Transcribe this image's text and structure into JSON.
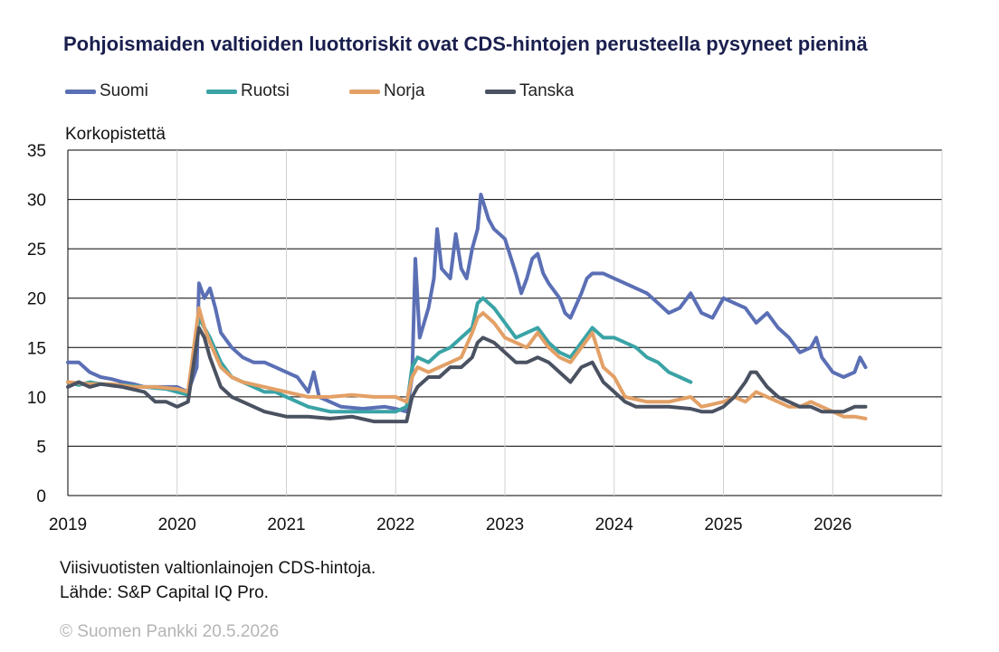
{
  "title": "Pohjoismaiden valtioiden luottoriskit ovat CDS-hintojen perusteella pysyneet pieninä",
  "unit_label": "Korkopistettä",
  "notes": [
    "Viisivuotisten valtionlainojen CDS-hintoja.",
    "Lähde: S&P Capital IQ Pro."
  ],
  "copyright": "© Suomen Pankki 20.5.2026",
  "legend": [
    {
      "name": "Suomi",
      "color": "#5b6fb5"
    },
    {
      "name": "Ruotsi",
      "color": "#3aa3a6"
    },
    {
      "name": "Norja",
      "color": "#e3a066"
    },
    {
      "name": "Tanska",
      "color": "#4a5262"
    }
  ],
  "chart_data": {
    "type": "line",
    "ylabel": "Korkopistettä",
    "xlim": [
      2019,
      2027
    ],
    "ylim": [
      0,
      35
    ],
    "x_ticks": [
      2019,
      2020,
      2021,
      2022,
      2023,
      2024,
      2025,
      2026
    ],
    "y_ticks": [
      0,
      5,
      10,
      15,
      20,
      25,
      30,
      35
    ],
    "grid": "vertical and horizontal",
    "legend_position": "top",
    "series": [
      {
        "name": "Suomi",
        "color": "#5b6fb5",
        "points": [
          [
            2019.0,
            13.5
          ],
          [
            2019.1,
            13.5
          ],
          [
            2019.2,
            12.5
          ],
          [
            2019.3,
            12.0
          ],
          [
            2019.4,
            11.8
          ],
          [
            2019.5,
            11.5
          ],
          [
            2019.6,
            11.3
          ],
          [
            2019.7,
            11.0
          ],
          [
            2019.8,
            11.0
          ],
          [
            2019.9,
            11.0
          ],
          [
            2020.0,
            11.0
          ],
          [
            2020.1,
            10.5
          ],
          [
            2020.18,
            13.0
          ],
          [
            2020.2,
            21.5
          ],
          [
            2020.25,
            20.0
          ],
          [
            2020.3,
            21.0
          ],
          [
            2020.35,
            19.0
          ],
          [
            2020.4,
            16.5
          ],
          [
            2020.5,
            15.0
          ],
          [
            2020.6,
            14.0
          ],
          [
            2020.7,
            13.5
          ],
          [
            2020.8,
            13.5
          ],
          [
            2020.9,
            13.0
          ],
          [
            2021.0,
            12.5
          ],
          [
            2021.1,
            12.0
          ],
          [
            2021.2,
            10.5
          ],
          [
            2021.25,
            12.5
          ],
          [
            2021.3,
            10.0
          ],
          [
            2021.5,
            9.0
          ],
          [
            2021.7,
            8.8
          ],
          [
            2021.9,
            9.0
          ],
          [
            2022.0,
            8.8
          ],
          [
            2022.1,
            8.5
          ],
          [
            2022.15,
            12.0
          ],
          [
            2022.18,
            24.0
          ],
          [
            2022.22,
            16.0
          ],
          [
            2022.3,
            19.0
          ],
          [
            2022.35,
            22.0
          ],
          [
            2022.38,
            27.0
          ],
          [
            2022.42,
            23.0
          ],
          [
            2022.5,
            22.0
          ],
          [
            2022.55,
            26.5
          ],
          [
            2022.6,
            23.0
          ],
          [
            2022.65,
            22.0
          ],
          [
            2022.7,
            25.0
          ],
          [
            2022.75,
            27.0
          ],
          [
            2022.78,
            30.5
          ],
          [
            2022.85,
            28.0
          ],
          [
            2022.9,
            27.0
          ],
          [
            2023.0,
            26.0
          ],
          [
            2023.1,
            22.5
          ],
          [
            2023.15,
            20.5
          ],
          [
            2023.2,
            22.0
          ],
          [
            2023.25,
            24.0
          ],
          [
            2023.3,
            24.5
          ],
          [
            2023.35,
            22.5
          ],
          [
            2023.4,
            21.5
          ],
          [
            2023.5,
            20.0
          ],
          [
            2023.55,
            18.5
          ],
          [
            2023.6,
            18.0
          ],
          [
            2023.7,
            20.5
          ],
          [
            2023.75,
            22.0
          ],
          [
            2023.8,
            22.5
          ],
          [
            2023.9,
            22.5
          ],
          [
            2024.0,
            22.0
          ],
          [
            2024.1,
            21.5
          ],
          [
            2024.2,
            21.0
          ],
          [
            2024.3,
            20.5
          ],
          [
            2024.4,
            19.5
          ],
          [
            2024.5,
            18.5
          ],
          [
            2024.6,
            19.0
          ],
          [
            2024.7,
            20.5
          ],
          [
            2024.8,
            18.5
          ],
          [
            2024.9,
            18.0
          ],
          [
            2025.0,
            20.0
          ],
          [
            2025.1,
            19.5
          ],
          [
            2025.2,
            19.0
          ],
          [
            2025.3,
            17.5
          ],
          [
            2025.4,
            18.5
          ],
          [
            2025.5,
            17.0
          ],
          [
            2025.6,
            16.0
          ],
          [
            2025.7,
            14.5
          ],
          [
            2025.8,
            15.0
          ],
          [
            2025.85,
            16.0
          ],
          [
            2025.9,
            14.0
          ],
          [
            2026.0,
            12.5
          ],
          [
            2026.1,
            12.0
          ],
          [
            2026.2,
            12.5
          ],
          [
            2026.25,
            14.0
          ],
          [
            2026.3,
            13.0
          ]
        ]
      },
      {
        "name": "Ruotsi",
        "color": "#3aa3a6",
        "points": [
          [
            2019.0,
            11.5
          ],
          [
            2019.1,
            11.2
          ],
          [
            2019.2,
            11.5
          ],
          [
            2019.3,
            11.3
          ],
          [
            2019.5,
            11.2
          ],
          [
            2019.7,
            11.0
          ],
          [
            2019.9,
            10.8
          ],
          [
            2020.0,
            10.5
          ],
          [
            2020.1,
            10.2
          ],
          [
            2020.2,
            18.0
          ],
          [
            2020.25,
            17.0
          ],
          [
            2020.3,
            16.0
          ],
          [
            2020.4,
            13.5
          ],
          [
            2020.5,
            12.0
          ],
          [
            2020.6,
            11.5
          ],
          [
            2020.7,
            11.0
          ],
          [
            2020.8,
            10.5
          ],
          [
            2020.9,
            10.5
          ],
          [
            2021.0,
            10.0
          ],
          [
            2021.2,
            9.0
          ],
          [
            2021.4,
            8.5
          ],
          [
            2021.6,
            8.5
          ],
          [
            2021.8,
            8.5
          ],
          [
            2022.0,
            8.5
          ],
          [
            2022.1,
            9.0
          ],
          [
            2022.15,
            13.0
          ],
          [
            2022.2,
            14.0
          ],
          [
            2022.3,
            13.5
          ],
          [
            2022.4,
            14.5
          ],
          [
            2022.5,
            15.0
          ],
          [
            2022.6,
            16.0
          ],
          [
            2022.7,
            17.0
          ],
          [
            2022.75,
            19.5
          ],
          [
            2022.8,
            20.0
          ],
          [
            2022.9,
            19.0
          ],
          [
            2023.0,
            17.5
          ],
          [
            2023.1,
            16.0
          ],
          [
            2023.2,
            16.5
          ],
          [
            2023.3,
            17.0
          ],
          [
            2023.4,
            15.5
          ],
          [
            2023.5,
            14.5
          ],
          [
            2023.6,
            14.0
          ],
          [
            2023.7,
            15.5
          ],
          [
            2023.8,
            17.0
          ],
          [
            2023.9,
            16.0
          ],
          [
            2024.0,
            16.0
          ],
          [
            2024.1,
            15.5
          ],
          [
            2024.2,
            15.0
          ],
          [
            2024.3,
            14.0
          ],
          [
            2024.4,
            13.5
          ],
          [
            2024.5,
            12.5
          ],
          [
            2024.6,
            12.0
          ],
          [
            2024.7,
            11.5
          ]
        ]
      },
      {
        "name": "Norja",
        "color": "#e3a066",
        "points": [
          [
            2019.0,
            11.5
          ],
          [
            2019.2,
            11.3
          ],
          [
            2019.4,
            11.3
          ],
          [
            2019.6,
            11.0
          ],
          [
            2019.8,
            11.0
          ],
          [
            2020.0,
            10.8
          ],
          [
            2020.1,
            10.5
          ],
          [
            2020.2,
            19.0
          ],
          [
            2020.25,
            17.0
          ],
          [
            2020.3,
            15.5
          ],
          [
            2020.4,
            13.0
          ],
          [
            2020.5,
            12.0
          ],
          [
            2020.6,
            11.5
          ],
          [
            2020.8,
            11.0
          ],
          [
            2021.0,
            10.5
          ],
          [
            2021.2,
            10.0
          ],
          [
            2021.4,
            10.0
          ],
          [
            2021.6,
            10.2
          ],
          [
            2021.8,
            10.0
          ],
          [
            2022.0,
            10.0
          ],
          [
            2022.1,
            9.5
          ],
          [
            2022.15,
            12.0
          ],
          [
            2022.2,
            13.0
          ],
          [
            2022.3,
            12.5
          ],
          [
            2022.4,
            13.0
          ],
          [
            2022.5,
            13.5
          ],
          [
            2022.6,
            14.0
          ],
          [
            2022.7,
            16.5
          ],
          [
            2022.75,
            18.0
          ],
          [
            2022.8,
            18.5
          ],
          [
            2022.9,
            17.5
          ],
          [
            2023.0,
            16.0
          ],
          [
            2023.2,
            15.0
          ],
          [
            2023.3,
            16.5
          ],
          [
            2023.4,
            15.0
          ],
          [
            2023.5,
            14.0
          ],
          [
            2023.6,
            13.5
          ],
          [
            2023.7,
            15.0
          ],
          [
            2023.8,
            16.5
          ],
          [
            2023.9,
            13.0
          ],
          [
            2024.0,
            12.0
          ],
          [
            2024.1,
            10.0
          ],
          [
            2024.3,
            9.5
          ],
          [
            2024.5,
            9.5
          ],
          [
            2024.7,
            10.0
          ],
          [
            2024.8,
            9.0
          ],
          [
            2025.0,
            9.5
          ],
          [
            2025.1,
            10.0
          ],
          [
            2025.2,
            9.5
          ],
          [
            2025.3,
            10.5
          ],
          [
            2025.4,
            10.0
          ],
          [
            2025.5,
            9.5
          ],
          [
            2025.6,
            9.0
          ],
          [
            2025.7,
            9.0
          ],
          [
            2025.8,
            9.5
          ],
          [
            2025.9,
            9.0
          ],
          [
            2026.0,
            8.5
          ],
          [
            2026.1,
            8.0
          ],
          [
            2026.2,
            8.0
          ],
          [
            2026.3,
            7.8
          ]
        ]
      },
      {
        "name": "Tanska",
        "color": "#4a5262",
        "points": [
          [
            2019.0,
            11.0
          ],
          [
            2019.1,
            11.5
          ],
          [
            2019.2,
            11.0
          ],
          [
            2019.3,
            11.3
          ],
          [
            2019.5,
            11.0
          ],
          [
            2019.7,
            10.5
          ],
          [
            2019.8,
            9.5
          ],
          [
            2019.9,
            9.5
          ],
          [
            2020.0,
            9.0
          ],
          [
            2020.1,
            9.5
          ],
          [
            2020.2,
            17.0
          ],
          [
            2020.25,
            16.0
          ],
          [
            2020.3,
            14.0
          ],
          [
            2020.4,
            11.0
          ],
          [
            2020.5,
            10.0
          ],
          [
            2020.6,
            9.5
          ],
          [
            2020.8,
            8.5
          ],
          [
            2021.0,
            8.0
          ],
          [
            2021.2,
            8.0
          ],
          [
            2021.4,
            7.8
          ],
          [
            2021.6,
            8.0
          ],
          [
            2021.8,
            7.5
          ],
          [
            2022.0,
            7.5
          ],
          [
            2022.1,
            7.5
          ],
          [
            2022.15,
            10.0
          ],
          [
            2022.2,
            11.0
          ],
          [
            2022.3,
            12.0
          ],
          [
            2022.4,
            12.0
          ],
          [
            2022.5,
            13.0
          ],
          [
            2022.6,
            13.0
          ],
          [
            2022.7,
            14.0
          ],
          [
            2022.75,
            15.5
          ],
          [
            2022.8,
            16.0
          ],
          [
            2022.9,
            15.5
          ],
          [
            2023.0,
            14.5
          ],
          [
            2023.1,
            13.5
          ],
          [
            2023.2,
            13.5
          ],
          [
            2023.3,
            14.0
          ],
          [
            2023.4,
            13.5
          ],
          [
            2023.5,
            12.5
          ],
          [
            2023.6,
            11.5
          ],
          [
            2023.7,
            13.0
          ],
          [
            2023.8,
            13.5
          ],
          [
            2023.9,
            11.5
          ],
          [
            2024.0,
            10.5
          ],
          [
            2024.1,
            9.5
          ],
          [
            2024.2,
            9.0
          ],
          [
            2024.3,
            9.0
          ],
          [
            2024.5,
            9.0
          ],
          [
            2024.7,
            8.8
          ],
          [
            2024.8,
            8.5
          ],
          [
            2024.9,
            8.5
          ],
          [
            2025.0,
            9.0
          ],
          [
            2025.1,
            10.0
          ],
          [
            2025.2,
            11.5
          ],
          [
            2025.25,
            12.5
          ],
          [
            2025.3,
            12.5
          ],
          [
            2025.4,
            11.0
          ],
          [
            2025.5,
            10.0
          ],
          [
            2025.6,
            9.5
          ],
          [
            2025.7,
            9.0
          ],
          [
            2025.8,
            9.0
          ],
          [
            2025.9,
            8.5
          ],
          [
            2026.0,
            8.5
          ],
          [
            2026.1,
            8.5
          ],
          [
            2026.2,
            9.0
          ],
          [
            2026.3,
            9.0
          ]
        ]
      }
    ]
  }
}
